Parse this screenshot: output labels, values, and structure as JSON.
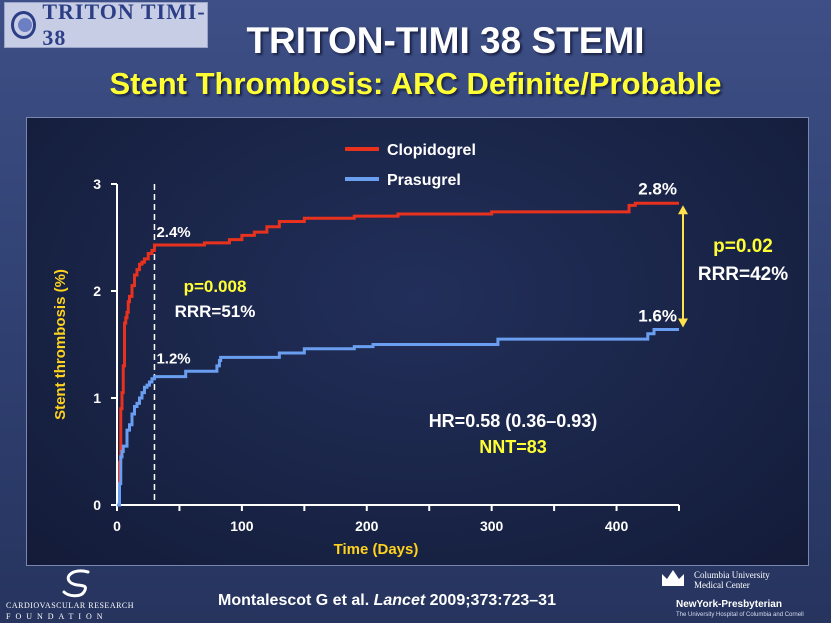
{
  "header": {
    "logo_text": "TRITON TIMI-38",
    "title": "TRITON-TIMI 38 STEMI",
    "subtitle": "Stent Thrombosis: ARC Definite/Probable"
  },
  "chart_data": {
    "type": "line",
    "xlabel": "Time (Days)",
    "ylabel": "Stent thrombosis (%)",
    "xlim": [
      0,
      450
    ],
    "ylim": [
      0,
      3
    ],
    "xticks": [
      0,
      100,
      200,
      300,
      400
    ],
    "yticks": [
      0,
      1,
      2,
      3
    ],
    "grid": false,
    "legend_position": "top-center",
    "landmark_day": 30,
    "series": [
      {
        "name": "Clopidogrel",
        "color": "#e8321e",
        "step": true,
        "x": [
          0,
          2,
          3,
          4,
          5,
          6,
          7,
          8,
          9,
          10,
          12,
          14,
          16,
          18,
          20,
          22,
          25,
          28,
          30,
          60,
          70,
          90,
          100,
          110,
          120,
          130,
          150,
          190,
          225,
          300,
          410,
          415,
          450
        ],
        "y": [
          0,
          0.4,
          0.9,
          1.05,
          1.3,
          1.7,
          1.75,
          1.8,
          1.9,
          1.95,
          2.05,
          2.15,
          2.2,
          2.25,
          2.27,
          2.3,
          2.35,
          2.38,
          2.43,
          2.43,
          2.45,
          2.48,
          2.52,
          2.55,
          2.6,
          2.65,
          2.68,
          2.7,
          2.72,
          2.74,
          2.8,
          2.82,
          2.82
        ]
      },
      {
        "name": "Prasugrel",
        "color": "#6a9ef0",
        "step": true,
        "x": [
          0,
          2,
          3,
          4,
          5,
          8,
          10,
          12,
          14,
          16,
          18,
          20,
          22,
          24,
          26,
          28,
          30,
          55,
          80,
          82,
          83,
          130,
          150,
          190,
          205,
          305,
          425,
          430,
          450
        ],
        "y": [
          0,
          0.2,
          0.45,
          0.5,
          0.55,
          0.7,
          0.75,
          0.85,
          0.92,
          0.95,
          1.0,
          1.05,
          1.1,
          1.12,
          1.15,
          1.18,
          1.2,
          1.25,
          1.3,
          1.35,
          1.38,
          1.42,
          1.46,
          1.48,
          1.5,
          1.55,
          1.6,
          1.64,
          1.64
        ]
      }
    ],
    "annotations": {
      "clop_30": "2.4%",
      "pras_30": "1.2%",
      "clop_end": "2.8%",
      "pras_end": "1.6%",
      "p30": "p=0.008",
      "rrr30": "RRR=51%",
      "p_end": "p=0.02",
      "rrr_end": "RRR=42%",
      "hr": "HR=0.58 (0.36–0.93)",
      "nnt": "NNT=83"
    },
    "colors": {
      "axis": "#ffffff",
      "ylabel": "#ffd21e",
      "xlabel": "#ffd21e",
      "p_text": "#ffff33",
      "arrow": "#ffe14a"
    }
  },
  "footer": {
    "crf_line1": "CARDIOVASCULAR RESEARCH",
    "crf_line2": "FOUNDATION",
    "citation_authors": "Montalescot G et al.",
    "citation_journal": "Lancet",
    "citation_ref": "2009;373:723–31",
    "cu_line1": "Columbia University",
    "cu_line2": "Medical Center",
    "nyp": "NewYork-Presbyterian",
    "nyp_sub": "The University Hospital of Columbia and Cornell"
  }
}
